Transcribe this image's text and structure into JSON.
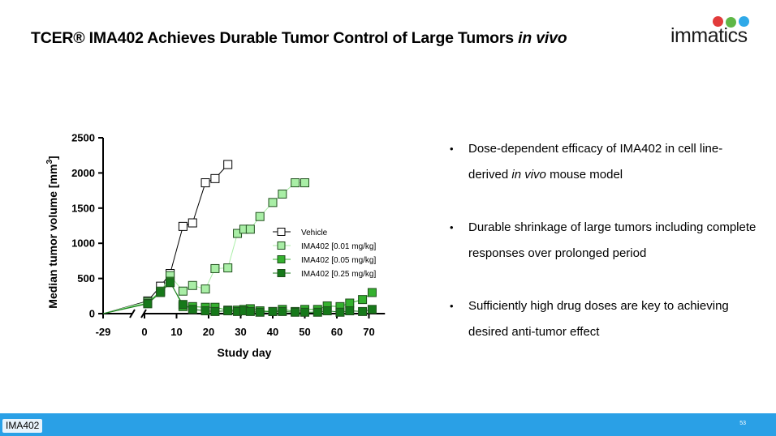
{
  "slide": {
    "title_main": "TCER® IMA402 Achieves Durable Tumor Control of Large Tumors ",
    "title_italic": "in vivo",
    "logo_text": "immatics",
    "footer_tag": "IMA402",
    "page_number": "53"
  },
  "bullets": [
    {
      "pre": "Dose-dependent efficacy of IMA402 in cell line-derived ",
      "italic": "in vivo",
      "post": " mouse model"
    },
    {
      "pre": "Durable shrinkage of large tumors including complete responses over prolonged period",
      "italic": "",
      "post": ""
    },
    {
      "pre": "Sufficiently high drug doses are key to achieving desired anti-tumor effect",
      "italic": "",
      "post": ""
    }
  ],
  "colors": {
    "vehicle_fill": "#ffffff",
    "dose_001": "#a9eea6",
    "dose_005": "#35b12f",
    "dose_025": "#16791a",
    "footer": "#2aa0e6"
  },
  "chart_data": {
    "type": "line",
    "xlabel": "Study day",
    "ylabel": "Median tumor volume [mm",
    "ylabel_sup": "3",
    "ylabel_close": "]",
    "xlim": [
      -29,
      75
    ],
    "ylim": [
      0,
      2500
    ],
    "x_break": "between -29 and 0",
    "xticks": [
      -29,
      0,
      10,
      20,
      30,
      40,
      50,
      60,
      70
    ],
    "yticks": [
      0,
      500,
      1000,
      1500,
      2000,
      2500
    ],
    "legend_position": "center-right",
    "series": [
      {
        "name": "Vehicle",
        "color_key": "vehicle_fill",
        "x": [
          -29,
          1,
          5,
          8,
          12,
          15,
          19,
          22,
          26
        ],
        "y": [
          0,
          180,
          390,
          570,
          1240,
          1290,
          1860,
          1920,
          2120
        ]
      },
      {
        "name": "IMA402 [0.01 mg/kg]",
        "color_key": "dose_001",
        "x": [
          -29,
          1,
          5,
          8,
          12,
          15,
          19,
          22,
          26,
          29,
          31,
          33,
          36,
          40,
          43,
          47,
          50
        ],
        "y": [
          0,
          170,
          310,
          540,
          320,
          400,
          350,
          640,
          650,
          1140,
          1200,
          1200,
          1380,
          1580,
          1700,
          1860,
          1860
        ]
      },
      {
        "name": "IMA402 [0.05 mg/kg]",
        "color_key": "dose_005",
        "x": [
          -29,
          1,
          5,
          8,
          12,
          15,
          19,
          22,
          26,
          29,
          31,
          33,
          36,
          40,
          43,
          47,
          50,
          54,
          57,
          61,
          64,
          68,
          71
        ],
        "y": [
          0,
          150,
          320,
          460,
          100,
          100,
          90,
          90,
          50,
          50,
          60,
          70,
          40,
          30,
          60,
          30,
          60,
          60,
          110,
          100,
          150,
          200,
          300
        ]
      },
      {
        "name": "IMA402 [0.25 mg/kg]",
        "color_key": "dose_025",
        "x": [
          -29,
          1,
          5,
          8,
          12,
          15,
          19,
          22,
          26,
          29,
          31,
          33,
          36,
          40,
          43,
          47,
          50,
          54,
          57,
          61,
          64,
          68,
          71
        ],
        "y": [
          0,
          140,
          300,
          440,
          130,
          60,
          40,
          30,
          40,
          30,
          40,
          30,
          20,
          30,
          30,
          20,
          20,
          20,
          40,
          20,
          40,
          30,
          60
        ]
      }
    ]
  }
}
